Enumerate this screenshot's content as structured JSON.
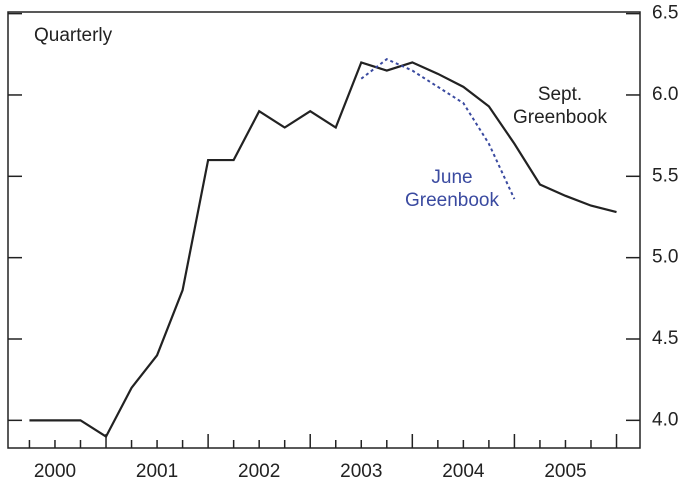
{
  "chart_data": {
    "type": "line",
    "annotation": "Quarterly",
    "x": [
      2000.25,
      2000.5,
      2000.75,
      2001.0,
      2001.25,
      2001.5,
      2001.75,
      2002.0,
      2002.25,
      2002.5,
      2002.75,
      2003.0,
      2003.25,
      2003.5,
      2003.75,
      2004.0,
      2004.25,
      2004.5,
      2004.75,
      2005.0,
      2005.25,
      2005.5,
      2005.75,
      2006.0
    ],
    "series": [
      {
        "name": "Sept. Greenbook",
        "color": "#222222",
        "dash": false,
        "values": [
          4.0,
          4.0,
          4.0,
          3.9,
          4.2,
          4.4,
          4.8,
          5.6,
          5.6,
          5.9,
          5.8,
          5.9,
          5.8,
          6.2,
          6.15,
          6.2,
          6.13,
          6.05,
          5.93,
          5.7,
          5.45,
          5.38,
          5.32,
          5.28
        ]
      },
      {
        "name": "June Greenbook",
        "color": "#3a4aa0",
        "dash": true,
        "values": [
          null,
          null,
          null,
          null,
          null,
          null,
          null,
          null,
          null,
          null,
          null,
          null,
          null,
          6.1,
          6.22,
          6.15,
          6.05,
          5.95,
          5.7,
          5.36,
          null,
          null,
          null,
          null
        ]
      }
    ],
    "xlim": [
      2000.04,
      2006.23
    ],
    "xticks": [
      {
        "value": 2000.5,
        "label": "2000"
      },
      {
        "value": 2001.5,
        "label": "2001"
      },
      {
        "value": 2002.5,
        "label": "2002"
      },
      {
        "value": 2003.5,
        "label": "2003"
      },
      {
        "value": 2004.5,
        "label": "2004"
      },
      {
        "value": 2005.5,
        "label": "2005"
      }
    ],
    "ylim": [
      3.83,
      6.51
    ],
    "yticks": [
      {
        "value": 4,
        "label": "4.0"
      },
      4.5,
      {
        "value": 5,
        "label": "5.0"
      },
      5.5,
      {
        "value": 6,
        "label": "6.0"
      },
      6.5
    ]
  }
}
